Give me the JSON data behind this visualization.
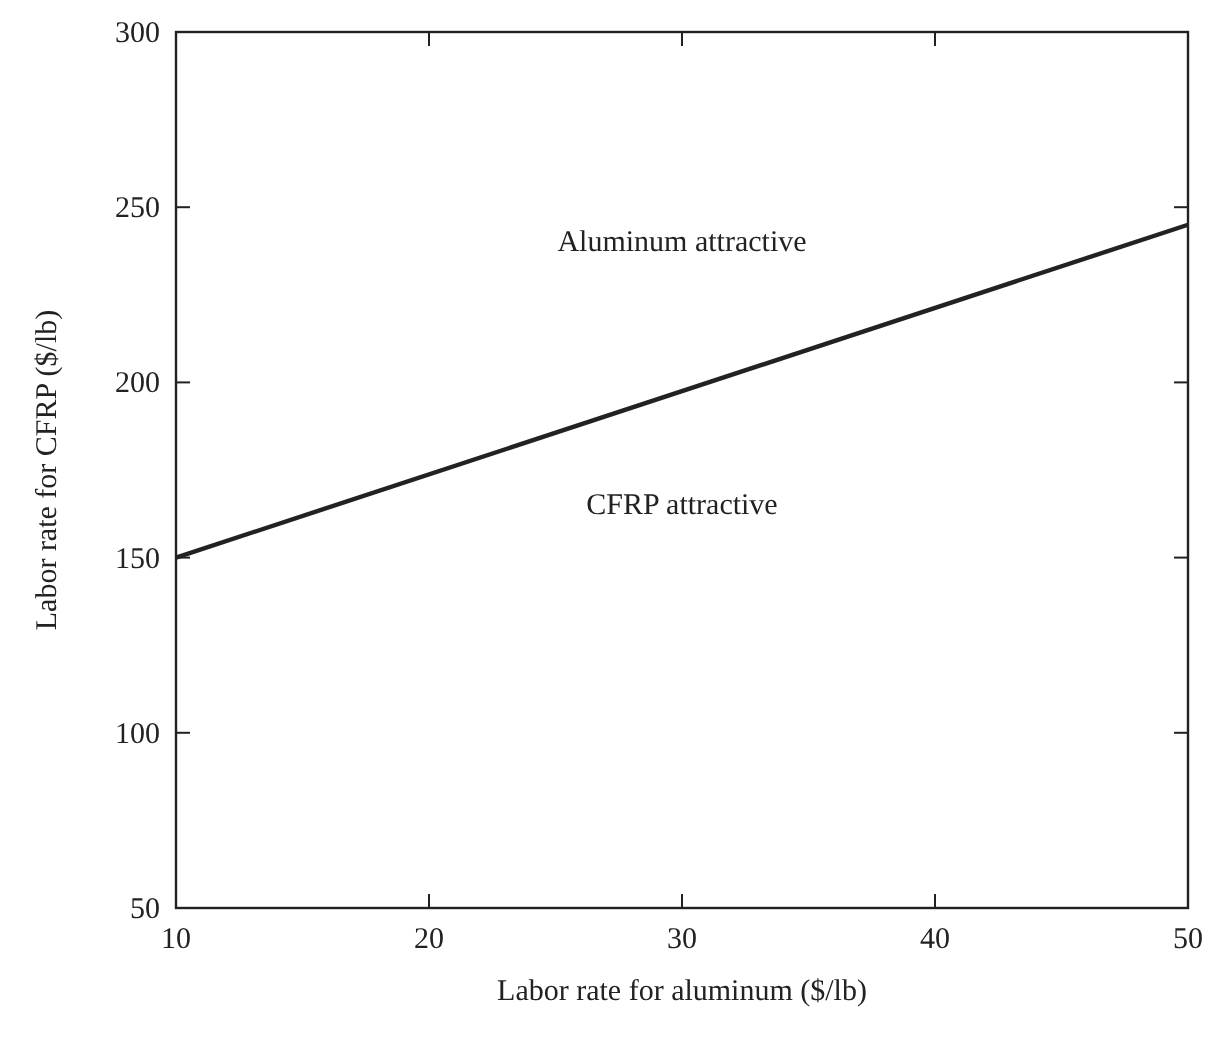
{
  "chart_data": {
    "type": "line",
    "xlabel": "Labor rate for aluminum ($/lb)",
    "ylabel": "Labor rate for CFRP ($/lb)",
    "x": [
      10,
      50
    ],
    "series": [
      {
        "color": "#222222",
        "values": [
          150,
          245
        ]
      }
    ],
    "xlim": [
      10,
      50
    ],
    "ylim": [
      50,
      300
    ],
    "xticks": [
      10,
      20,
      30,
      40,
      50
    ],
    "yticks": [
      50,
      100,
      150,
      200,
      250,
      300
    ],
    "marker": "none",
    "line_style": "solid",
    "annotations": [
      "Aluminum attractive",
      "CFRP attractive"
    ]
  }
}
